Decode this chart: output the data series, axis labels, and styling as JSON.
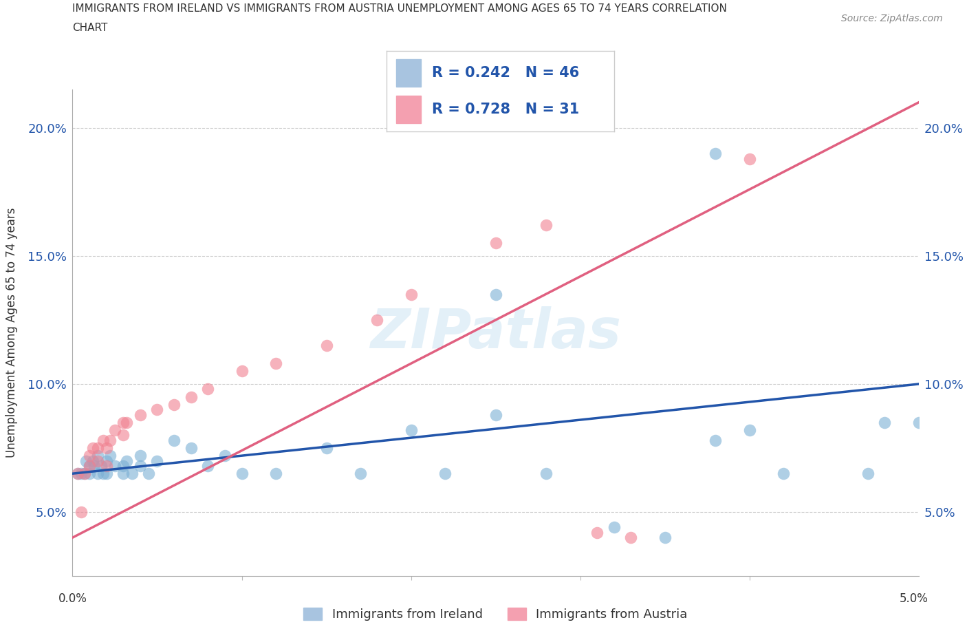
{
  "title_line1": "IMMIGRANTS FROM IRELAND VS IMMIGRANTS FROM AUSTRIA UNEMPLOYMENT AMONG AGES 65 TO 74 YEARS CORRELATION",
  "title_line2": "CHART",
  "source": "Source: ZipAtlas.com",
  "ylabel": "Unemployment Among Ages 65 to 74 years",
  "ireland_color": "#7bafd4",
  "austria_color": "#f08090",
  "ireland_line_color": "#2255aa",
  "austria_line_color": "#e06080",
  "ireland_box_color": "#a8c4e0",
  "austria_box_color": "#f4a0b0",
  "corr_text_color": "#2255aa",
  "watermark": "ZIPatlas",
  "corr_ireland_R": "0.242",
  "corr_ireland_N": "46",
  "corr_austria_R": "0.728",
  "corr_austria_N": "31",
  "xmin": 0.0,
  "xmax": 0.05,
  "ymin": 0.025,
  "ymax": 0.215,
  "yticks": [
    0.05,
    0.1,
    0.15,
    0.2
  ],
  "ytick_labels": [
    "5.0%",
    "10.0%",
    "15.0%",
    "20.0%"
  ],
  "ireland_scatter_x": [
    0.0003,
    0.0005,
    0.0007,
    0.0008,
    0.001,
    0.001,
    0.0012,
    0.0013,
    0.0015,
    0.0015,
    0.0017,
    0.0018,
    0.002,
    0.002,
    0.0022,
    0.0025,
    0.003,
    0.003,
    0.0032,
    0.0035,
    0.004,
    0.004,
    0.0045,
    0.005,
    0.006,
    0.007,
    0.008,
    0.009,
    0.01,
    0.012,
    0.015,
    0.017,
    0.02,
    0.022,
    0.025,
    0.028,
    0.032,
    0.035,
    0.038,
    0.04,
    0.042,
    0.047,
    0.048,
    0.025,
    0.038,
    0.05
  ],
  "ireland_scatter_y": [
    0.065,
    0.065,
    0.065,
    0.07,
    0.065,
    0.068,
    0.07,
    0.068,
    0.072,
    0.065,
    0.068,
    0.065,
    0.07,
    0.065,
    0.072,
    0.068,
    0.065,
    0.068,
    0.07,
    0.065,
    0.072,
    0.068,
    0.065,
    0.07,
    0.078,
    0.075,
    0.068,
    0.072,
    0.065,
    0.065,
    0.075,
    0.065,
    0.082,
    0.065,
    0.088,
    0.065,
    0.044,
    0.04,
    0.078,
    0.082,
    0.065,
    0.065,
    0.085,
    0.135,
    0.19,
    0.085
  ],
  "austria_scatter_x": [
    0.0003,
    0.0005,
    0.0007,
    0.001,
    0.001,
    0.0012,
    0.0015,
    0.0015,
    0.0018,
    0.002,
    0.002,
    0.0022,
    0.0025,
    0.003,
    0.003,
    0.0032,
    0.004,
    0.005,
    0.006,
    0.007,
    0.008,
    0.01,
    0.012,
    0.015,
    0.018,
    0.02,
    0.025,
    0.028,
    0.031,
    0.033,
    0.04
  ],
  "austria_scatter_y": [
    0.065,
    0.05,
    0.065,
    0.068,
    0.072,
    0.075,
    0.07,
    0.075,
    0.078,
    0.075,
    0.068,
    0.078,
    0.082,
    0.08,
    0.085,
    0.085,
    0.088,
    0.09,
    0.092,
    0.095,
    0.098,
    0.105,
    0.108,
    0.115,
    0.125,
    0.135,
    0.155,
    0.162,
    0.042,
    0.04,
    0.188
  ],
  "ireland_trend_x": [
    0.0,
    0.05
  ],
  "ireland_trend_y": [
    0.065,
    0.1
  ],
  "austria_trend_x": [
    0.0,
    0.05
  ],
  "austria_trend_y": [
    0.04,
    0.21
  ]
}
